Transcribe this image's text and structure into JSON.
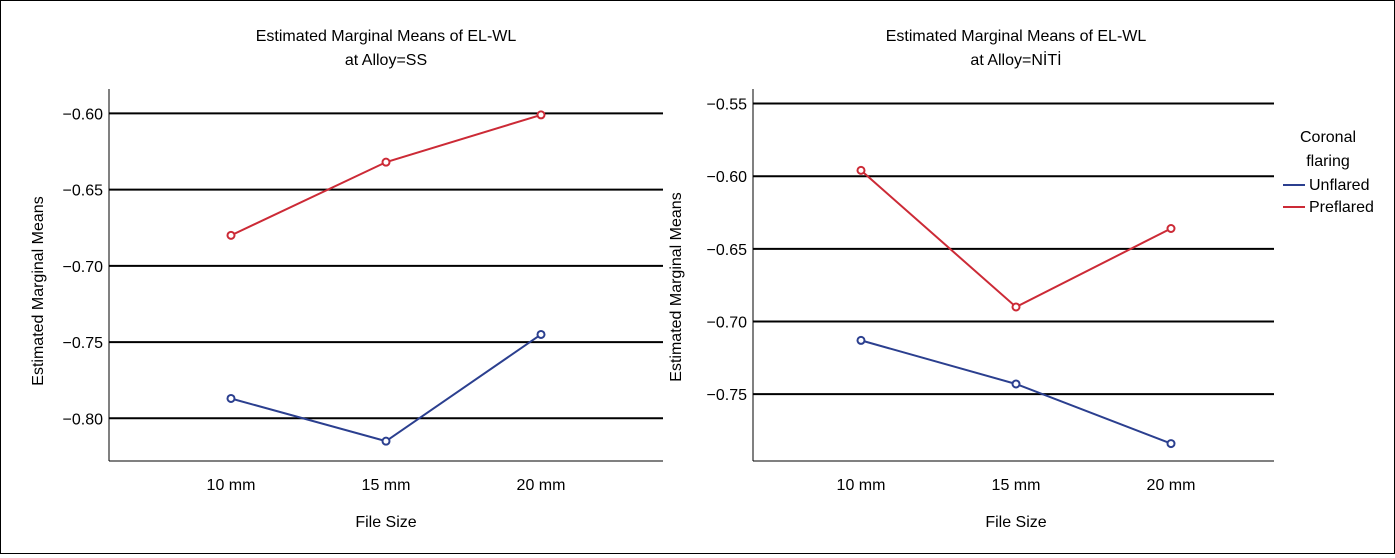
{
  "legend": {
    "title_line1": "Coronal",
    "title_line2": "flaring",
    "entries": [
      "Unflared",
      "Preflared"
    ]
  },
  "colors": {
    "Unflared": "#2b3f8f",
    "Preflared": "#cc2a36"
  },
  "chart_data": [
    {
      "type": "line",
      "title_line1": "Estimated Marginal Means of EL-WL",
      "title_line2": "at Alloy=SS",
      "xlabel": "File Size",
      "ylabel": "Estimated Marginal Means",
      "categories": [
        "10 mm",
        "15 mm",
        "20 mm"
      ],
      "ylim": [
        -0.828,
        -0.584
      ],
      "yticks": [
        -0.6,
        -0.65,
        -0.7,
        -0.75,
        -0.8
      ],
      "ytick_labels": [
        "−0.60",
        "−0.65",
        "−0.70",
        "−0.75",
        "−0.80"
      ],
      "grid": "horizontal",
      "series": [
        {
          "name": "Unflared",
          "values": [
            -0.787,
            -0.815,
            -0.745
          ]
        },
        {
          "name": "Preflared",
          "values": [
            -0.68,
            -0.632,
            -0.601
          ]
        }
      ]
    },
    {
      "type": "line",
      "title_line1": "Estimated Marginal Means of EL-WL",
      "title_line2": "at Alloy=NİTİ",
      "xlabel": "File Size",
      "ylabel": "Estimated Marginal Means",
      "categories": [
        "10 mm",
        "15 mm",
        "20 mm"
      ],
      "ylim": [
        -0.796,
        -0.54
      ],
      "yticks": [
        -0.55,
        -0.6,
        -0.65,
        -0.7,
        -0.75
      ],
      "ytick_labels": [
        "−0.55",
        "−0.60",
        "−0.65",
        "−0.70",
        "−0.75"
      ],
      "grid": "horizontal",
      "series": [
        {
          "name": "Unflared",
          "values": [
            -0.713,
            -0.743,
            -0.784
          ]
        },
        {
          "name": "Preflared",
          "values": [
            -0.596,
            -0.69,
            -0.636
          ]
        }
      ]
    }
  ]
}
